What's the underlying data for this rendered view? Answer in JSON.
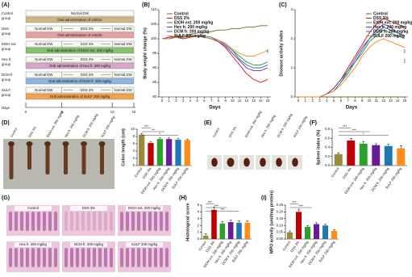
{
  "panel_labels": [
    "(A)",
    "(B)",
    "(C)",
    "(D)",
    "(E)",
    "(F)",
    "(G)",
    "(H)",
    "(I)"
  ],
  "schematic": {
    "groups": [
      {
        "label": [
          "Control",
          "group"
        ],
        "water": [
          "Normal DW"
        ],
        "treatment": "Oral administration of vehicle",
        "color": "#cdb780"
      },
      {
        "label": [
          "DSS",
          "group"
        ],
        "water": [
          "Normal DW",
          "DSS 3%",
          "Normal DW"
        ],
        "treatment": "Oral administration of vehicle",
        "color": "#eba0a0"
      },
      {
        "label": [
          "EtOH ext.",
          "group"
        ],
        "water": [
          "Normal DW",
          "DSS 3%",
          "Normal DW"
        ],
        "treatment": "Oral administration of EtOH ext. 200 mg/kg",
        "color": "#80c46c"
      },
      {
        "label": [
          "Hex fr.",
          "group"
        ],
        "water": [
          "Normal DW",
          "DSS 3%",
          "Normal DW"
        ],
        "treatment": "Oral administration of Hex fr. 200 mg/kg",
        "color": "#dba5c9"
      },
      {
        "label": [
          "DCM fr.",
          "group"
        ],
        "water": [
          "Normal DW",
          "DSS 3%",
          "Normal DW"
        ],
        "treatment": "Oral administration of DCM fr. 200 mg/kg",
        "color": "#8cb5e2"
      },
      {
        "label": [
          "SULF",
          "group"
        ],
        "water": [
          "Normal DW",
          "DSS 3%",
          "Normal DW"
        ],
        "treatment": "Oral administration of SULF 200 mg/kg",
        "color": "#f2a24c"
      }
    ],
    "days_label": "Days",
    "days": [
      0,
      5,
      12,
      15
    ]
  },
  "photo_labels": {
    "D": [
      "Control",
      "DSS 3%",
      "EtOH ext. 200 mg/kg",
      "Hex fr. 200 mg/kg",
      "DCM fr. 200 mg/kg",
      "SULF 200 mg/kg"
    ],
    "E": [
      "Control",
      "DSS 3%",
      "EtOH ext. 200 mg/kg",
      "Hex fr. 200 mg/kg",
      "DCM fr. 200 mg/kg",
      "SULF 200 mg/kg"
    ],
    "G": [
      "Control",
      "DSS 3%",
      "EtOH ext. 200 mg/kg",
      "Hex fr. 200 mg/kg",
      "DCM fr. 200 mg/kg",
      "SULF 200 mg/kg"
    ]
  },
  "chart_data": [
    {
      "type": "line",
      "ylabel": "Body weight change (%)",
      "xlabel": "Days",
      "legend": "upper left",
      "x": [
        0,
        1,
        2,
        3,
        4,
        5,
        6,
        7,
        8,
        9,
        10,
        11,
        12,
        13,
        14,
        15
      ],
      "xlim": [
        0,
        15
      ],
      "xticks": [
        0,
        1,
        2,
        3,
        4,
        5,
        6,
        7,
        8,
        9,
        10,
        11,
        12,
        13,
        14,
        15
      ],
      "ylim": [
        80,
        110
      ],
      "yticks": [
        80,
        85,
        90,
        95,
        100,
        105,
        110
      ],
      "annotations": [
        "***"
      ],
      "series": [
        {
          "name": "Control",
          "color": "#7a6a2a",
          "values": [
            100,
            100.5,
            101,
            101,
            101.5,
            102,
            102,
            102.5,
            103,
            103,
            103.5,
            103.5,
            104,
            104,
            104.5,
            104.5
          ]
        },
        {
          "name": "DSS 3%",
          "color": "#d01010",
          "values": [
            100,
            100,
            100.5,
            100,
            100.5,
            101,
            100.5,
            100,
            99,
            97,
            94,
            91,
            88,
            86,
            85,
            86
          ]
        },
        {
          "name": "EtOH ext. 200 mg/kg",
          "color": "#2a9a2a",
          "values": [
            100,
            100,
            100.5,
            100.5,
            101,
            101,
            100.5,
            100,
            99.5,
            98,
            96,
            94,
            92,
            91,
            91,
            92
          ]
        },
        {
          "name": "Hex fr. 200 mg/kg",
          "color": "#7a2a9a",
          "values": [
            100,
            100.5,
            100.5,
            101,
            101,
            101,
            100.5,
            100,
            99,
            97.5,
            95,
            92.5,
            90,
            89,
            89,
            90
          ]
        },
        {
          "name": "DCM fr. 200 mg/kg",
          "color": "#1f6fc0",
          "values": [
            100,
            100,
            100.5,
            100.5,
            101,
            101,
            101,
            100.5,
            99.5,
            98,
            96,
            93,
            91,
            90,
            90,
            91
          ]
        },
        {
          "name": "SULF 200 mg/kg",
          "color": "#f08a1a",
          "values": [
            100,
            100,
            100.5,
            101,
            101,
            101,
            100.5,
            100,
            99.5,
            98.5,
            96.5,
            95,
            94,
            94,
            95,
            96
          ]
        }
      ]
    },
    {
      "type": "line",
      "ylabel": "Disease activity index",
      "xlabel": "Days",
      "legend": "upper right",
      "x": [
        0,
        1,
        2,
        3,
        4,
        5,
        6,
        7,
        8,
        9,
        10,
        11,
        12,
        13,
        14,
        15
      ],
      "xlim": [
        0,
        15
      ],
      "xticks": [
        0,
        1,
        2,
        3,
        4,
        5,
        6,
        7,
        8,
        9,
        10,
        11,
        12,
        13,
        14,
        15
      ],
      "ylim": [
        0,
        3
      ],
      "yticks": [
        0,
        1,
        2,
        3
      ],
      "annotations": [
        "***",
        "***"
      ],
      "series": [
        {
          "name": "Control",
          "color": "#7a6a2a",
          "values": [
            0,
            0,
            0,
            0,
            0,
            0,
            0,
            0,
            0,
            0,
            0,
            0,
            0,
            0,
            0,
            0
          ]
        },
        {
          "name": "DSS 3%",
          "color": "#d01010",
          "values": [
            0,
            0,
            0,
            0,
            0.1,
            0.3,
            0.6,
            1.0,
            1.4,
            1.8,
            2.2,
            2.5,
            2.7,
            2.6,
            2.5,
            2.4
          ]
        },
        {
          "name": "EtOH ext. 200 mg/kg",
          "color": "#2a9a2a",
          "values": [
            0,
            0,
            0,
            0,
            0.1,
            0.2,
            0.5,
            0.8,
            1.2,
            1.5,
            1.9,
            2.1,
            2.3,
            2.2,
            2.1,
            2.0
          ]
        },
        {
          "name": "Hex fr. 200 mg/kg",
          "color": "#7a2a9a",
          "values": [
            0,
            0,
            0,
            0,
            0.1,
            0.3,
            0.6,
            0.9,
            1.3,
            1.7,
            2.0,
            2.3,
            2.5,
            2.4,
            2.2,
            2.1
          ]
        },
        {
          "name": "DCM fr. 200 mg/kg",
          "color": "#1f6fc0",
          "values": [
            0,
            0,
            0,
            0,
            0.1,
            0.2,
            0.5,
            0.9,
            1.2,
            1.6,
            2.0,
            2.2,
            2.4,
            2.3,
            2.2,
            2.1
          ]
        },
        {
          "name": "SULF 200 mg/kg",
          "color": "#f08a1a",
          "values": [
            0,
            0,
            0,
            0,
            0.1,
            0.2,
            0.4,
            0.7,
            1.0,
            1.4,
            1.7,
            1.9,
            2.0,
            1.9,
            1.8,
            1.7
          ]
        }
      ]
    },
    {
      "type": "bar",
      "ylabel": "Colon length (cm)",
      "categories": [
        "Control",
        "DSS 3%",
        "EtOH ext. 200 mg/kg",
        "Hex fr. 200 mg/kg",
        "DCM fr. 200 mg/kg",
        "SULF 200 mg/kg"
      ],
      "values": [
        8.5,
        6.2,
        7.3,
        7.3,
        7.1,
        7.0
      ],
      "errors": [
        0.3,
        0.3,
        0.3,
        0.3,
        0.3,
        0.3
      ],
      "colors": [
        "#9a8a3c",
        "#c00000",
        "#2ca02c",
        "#6a1b9a",
        "#1f77b4",
        "#ff8c1a"
      ],
      "ylim": [
        0,
        10
      ],
      "yticks": [
        0,
        2,
        4,
        6,
        8,
        10
      ],
      "annotations": [
        "***",
        "**",
        "*"
      ]
    },
    {
      "type": "bar",
      "ylabel": "Spleen index (%)",
      "categories": [
        "Control",
        "DSS 3%",
        "EtOH ext. 200 mg/kg",
        "Hex fr. 200 mg/kg",
        "DCM fr. 200 mg/kg",
        "SULF 200 mg/kg"
      ],
      "values": [
        0.25,
        0.55,
        0.48,
        0.45,
        0.43,
        0.38
      ],
      "errors": [
        0.03,
        0.05,
        0.05,
        0.03,
        0.04,
        0.06
      ],
      "colors": [
        "#9a8a3c",
        "#c00000",
        "#2ca02c",
        "#6a1b9a",
        "#1f77b4",
        "#ff8c1a"
      ],
      "ylim": [
        0,
        0.8
      ],
      "yticks": [
        {
          "value": 0,
          "label": "0.0"
        },
        0.2,
        0.4,
        0.6,
        0.8
      ],
      "annotations": [
        "***",
        "***",
        "*"
      ]
    },
    {
      "type": "bar",
      "ylabel": "Histological score",
      "categories": [
        "Control",
        "DSS 3%",
        "EtOH ext. 200 mg/kg",
        "Hex fr. 200 mg/kg",
        "DCM fr. 200 mg/kg",
        "SULF 200 mg/kg"
      ],
      "values": [
        0.5,
        4.3,
        2.3,
        2.5,
        2.4,
        2.4
      ],
      "errors": [
        0.3,
        0.4,
        0.3,
        0.3,
        0.3,
        0.3
      ],
      "colors": [
        "#9a8a3c",
        "#c00000",
        "#2ca02c",
        "#6a1b9a",
        "#1f77b4",
        "#ff8c1a"
      ],
      "ylim": [
        0,
        5
      ],
      "yticks": [
        0,
        1,
        2,
        3,
        4,
        5
      ],
      "annotations": [
        "***",
        "***",
        "***"
      ]
    },
    {
      "type": "bar",
      "ylabel": "MPO activity (unit/mg protein)",
      "categories": [
        "Control",
        "DSS 3%",
        "EtOH ext. 200 mg/kg",
        "Hex fr. 200 mg/kg",
        "DCM fr. 200 mg/kg",
        "SULF 200 mg/kg"
      ],
      "values": [
        0.05,
        0.2,
        0.09,
        0.11,
        0.1,
        0.06
      ],
      "errors": [
        0.01,
        0.02,
        0.01,
        0.01,
        0.01,
        0.01
      ],
      "colors": [
        "#9a8a3c",
        "#c00000",
        "#2ca02c",
        "#6a1b9a",
        "#1f77b4",
        "#ff8c1a"
      ],
      "ylim": [
        0,
        0.25
      ],
      "yticks": [
        {
          "value": 0,
          "label": "0.00"
        },
        0.05,
        {
          "value": 0.1,
          "label": "0.10"
        },
        0.15,
        {
          "value": 0.2,
          "label": "0.20"
        },
        0.25
      ],
      "annotations": [
        "***",
        "***"
      ]
    }
  ]
}
